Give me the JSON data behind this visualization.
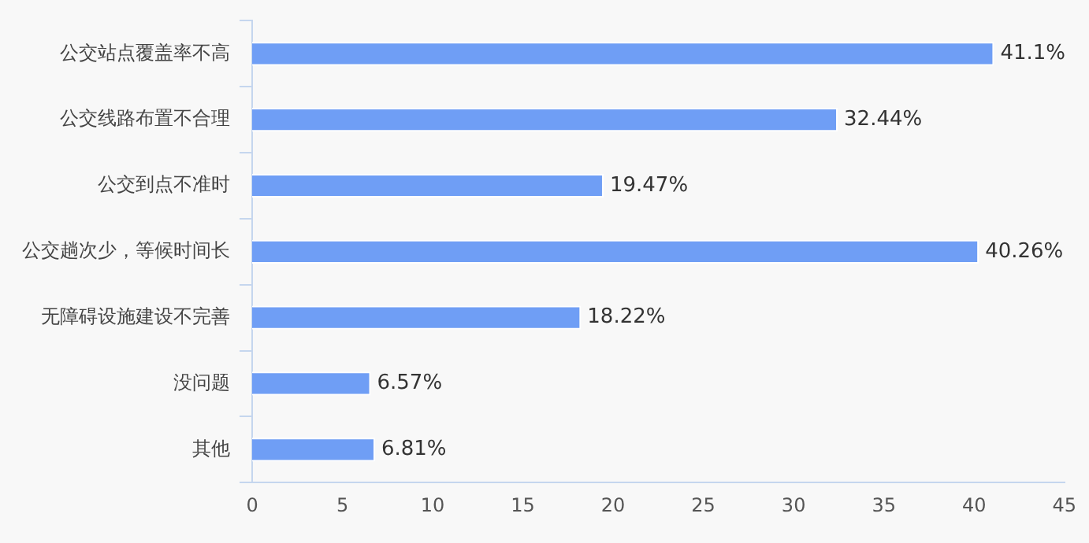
{
  "chart_data": {
    "type": "bar",
    "orientation": "horizontal",
    "categories": [
      "公交站点覆盖率不高",
      "公交线路布置不合理",
      "公交到点不准时",
      "公交趟次少，等候时间长",
      "无障碍设施建设不完善",
      "没问题",
      "其他"
    ],
    "values": [
      41.1,
      32.44,
      19.47,
      40.26,
      18.22,
      6.57,
      6.81
    ],
    "value_labels": [
      "41.1%",
      "32.44%",
      "19.47%",
      "40.26%",
      "18.22%",
      "6.57%",
      "6.81%"
    ],
    "color": "#6f9ef5",
    "xlim": [
      0,
      45
    ],
    "xticks": [
      0,
      5,
      10,
      15,
      20,
      25,
      30,
      35,
      40,
      45
    ],
    "grid": false,
    "legend": false
  }
}
